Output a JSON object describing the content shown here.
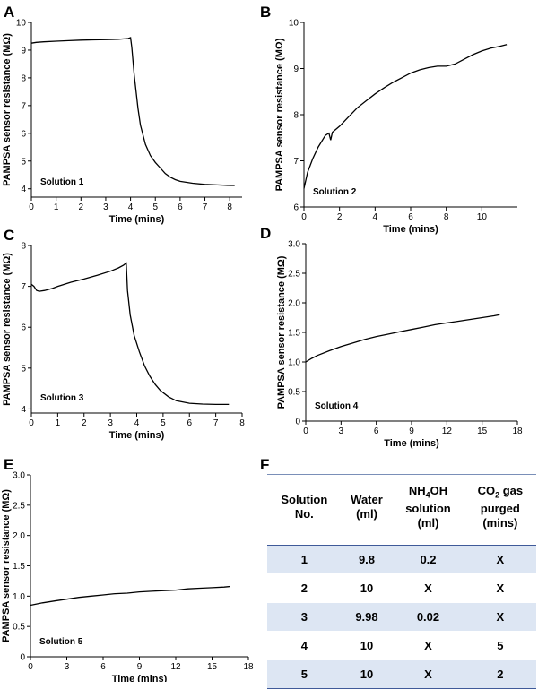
{
  "panel_letters": [
    "A",
    "B",
    "C",
    "D",
    "E",
    "F"
  ],
  "chart_data": [
    {
      "panel": "A",
      "type": "line",
      "xlabel": "Time (mins)",
      "ylabel": "PAMPSA sensor resistance (MΩ)",
      "annotation": "Solution 1",
      "xlim": [
        0,
        8.5
      ],
      "ylim": [
        3.7,
        10
      ],
      "xticks": [
        0,
        1,
        2,
        3,
        4,
        5,
        6,
        7,
        8
      ],
      "yticks": [
        4,
        5,
        6,
        7,
        8,
        9,
        10
      ],
      "series": [
        {
          "x": [
            0,
            0.2,
            0.5,
            1,
            1.5,
            2,
            2.5,
            3,
            3.5,
            3.9,
            4.0,
            4.05,
            4.15,
            4.3,
            4.4,
            4.6,
            4.8,
            5.0,
            5.2,
            5.4,
            5.6,
            5.8,
            6.0,
            6.5,
            7.0,
            7.5,
            8.0,
            8.2
          ],
          "y": [
            9.25,
            9.28,
            9.3,
            9.32,
            9.34,
            9.36,
            9.37,
            9.38,
            9.39,
            9.42,
            9.45,
            9.1,
            8.1,
            6.9,
            6.3,
            5.6,
            5.2,
            4.95,
            4.75,
            4.55,
            4.42,
            4.33,
            4.27,
            4.2,
            4.16,
            4.14,
            4.12,
            4.12
          ]
        }
      ]
    },
    {
      "panel": "B",
      "type": "line",
      "xlabel": "Time (mins)",
      "ylabel": "PAMPSA sensor resistance (MΩ)",
      "annotation": "Solution 2",
      "xlim": [
        0,
        12
      ],
      "ylim": [
        6,
        10
      ],
      "xticks": [
        0,
        2,
        4,
        6,
        8,
        10
      ],
      "yticks": [
        6,
        7,
        8,
        9,
        10
      ],
      "series": [
        {
          "x": [
            0,
            0.2,
            0.5,
            0.8,
            1.2,
            1.4,
            1.5,
            1.6,
            2,
            2.5,
            3,
            3.5,
            4,
            4.5,
            5,
            5.5,
            6,
            6.5,
            7,
            7.5,
            8,
            8.5,
            9,
            9.5,
            10,
            10.5,
            11,
            11.4
          ],
          "y": [
            6.4,
            6.75,
            7.05,
            7.3,
            7.55,
            7.6,
            7.45,
            7.62,
            7.75,
            7.95,
            8.15,
            8.3,
            8.45,
            8.58,
            8.7,
            8.8,
            8.9,
            8.97,
            9.02,
            9.05,
            9.05,
            9.1,
            9.2,
            9.3,
            9.38,
            9.44,
            9.48,
            9.52
          ]
        }
      ]
    },
    {
      "panel": "C",
      "type": "line",
      "xlabel": "Time (mins)",
      "ylabel": "PAMPSA sensor resistance (MΩ)",
      "annotation": "Solution 3",
      "xlim": [
        0,
        8
      ],
      "ylim": [
        3.9,
        8
      ],
      "xticks": [
        0,
        1,
        2,
        3,
        4,
        5,
        6,
        7,
        8
      ],
      "yticks": [
        4,
        5,
        6,
        7,
        8
      ],
      "series": [
        {
          "x": [
            0,
            0.1,
            0.2,
            0.3,
            0.5,
            0.8,
            1,
            1.5,
            2,
            2.5,
            3,
            3.3,
            3.5,
            3.6,
            3.65,
            3.75,
            3.9,
            4.1,
            4.3,
            4.5,
            4.7,
            4.9,
            5.2,
            5.5,
            6,
            6.5,
            7,
            7.5
          ],
          "y": [
            7.05,
            7.0,
            6.9,
            6.88,
            6.9,
            6.95,
            7.0,
            7.1,
            7.18,
            7.27,
            7.37,
            7.45,
            7.52,
            7.57,
            6.9,
            6.3,
            5.8,
            5.4,
            5.05,
            4.8,
            4.6,
            4.45,
            4.3,
            4.2,
            4.14,
            4.12,
            4.11,
            4.11
          ]
        }
      ]
    },
    {
      "panel": "D",
      "type": "line",
      "xlabel": "Time (mins)",
      "ylabel": "PAMPSA sensor resistance (MΩ)",
      "annotation": "Solution 4",
      "xlim": [
        0,
        18
      ],
      "ylim": [
        0,
        3.0
      ],
      "xticks": [
        0,
        3,
        6,
        9,
        12,
        15,
        18
      ],
      "yticks": [
        0,
        0.5,
        1.0,
        1.5,
        2.0,
        2.5,
        3.0
      ],
      "ytick_labels": [
        "0",
        "0.5",
        "1.0",
        "1.5",
        "2.0",
        "2.5",
        "3.0"
      ],
      "series": [
        {
          "x": [
            0,
            0.5,
            1,
            2,
            3,
            4,
            5,
            6,
            7,
            8,
            9,
            10,
            11,
            12,
            13,
            14,
            15,
            16,
            16.5
          ],
          "y": [
            1.0,
            1.06,
            1.11,
            1.19,
            1.26,
            1.32,
            1.38,
            1.43,
            1.47,
            1.51,
            1.55,
            1.59,
            1.63,
            1.66,
            1.69,
            1.72,
            1.75,
            1.78,
            1.8
          ]
        }
      ]
    },
    {
      "panel": "E",
      "type": "line",
      "xlabel": "Time (mins)",
      "ylabel": "PAMPSA sensor resistance (MΩ)",
      "annotation": "Solution 5",
      "xlim": [
        0,
        18
      ],
      "ylim": [
        0,
        3.0
      ],
      "xticks": [
        0,
        3,
        6,
        9,
        12,
        15,
        18
      ],
      "yticks": [
        0,
        0.5,
        1.0,
        1.5,
        2.0,
        2.5,
        3.0
      ],
      "ytick_labels": [
        "0",
        "0.5",
        "1.0",
        "1.5",
        "2.0",
        "2.5",
        "3.0"
      ],
      "series": [
        {
          "x": [
            0,
            1,
            2,
            3,
            4,
            5,
            6,
            7,
            8,
            9,
            10,
            11,
            12,
            13,
            14,
            15,
            16,
            16.5
          ],
          "y": [
            0.85,
            0.89,
            0.92,
            0.95,
            0.98,
            1.0,
            1.02,
            1.04,
            1.05,
            1.07,
            1.08,
            1.09,
            1.1,
            1.12,
            1.13,
            1.14,
            1.15,
            1.16
          ]
        }
      ]
    },
    {
      "panel": "F",
      "type": "table",
      "columns": [
        {
          "lines": [
            "Solution",
            "No."
          ]
        },
        {
          "lines": [
            "Water",
            "(ml)"
          ]
        },
        {
          "lines": [
            "NH",
            "OH",
            "solution",
            "(ml)"
          ],
          "sub": "4"
        },
        {
          "lines": [
            "CO",
            " gas",
            "purged",
            "(mins)"
          ],
          "sub": "2"
        }
      ],
      "rows": [
        [
          "1",
          "9.8",
          "0.2",
          "X"
        ],
        [
          "2",
          "10",
          "X",
          "X"
        ],
        [
          "3",
          "9.98",
          "0.02",
          "X"
        ],
        [
          "4",
          "10",
          "X",
          "5"
        ],
        [
          "5",
          "10",
          "X",
          "2"
        ]
      ]
    }
  ]
}
